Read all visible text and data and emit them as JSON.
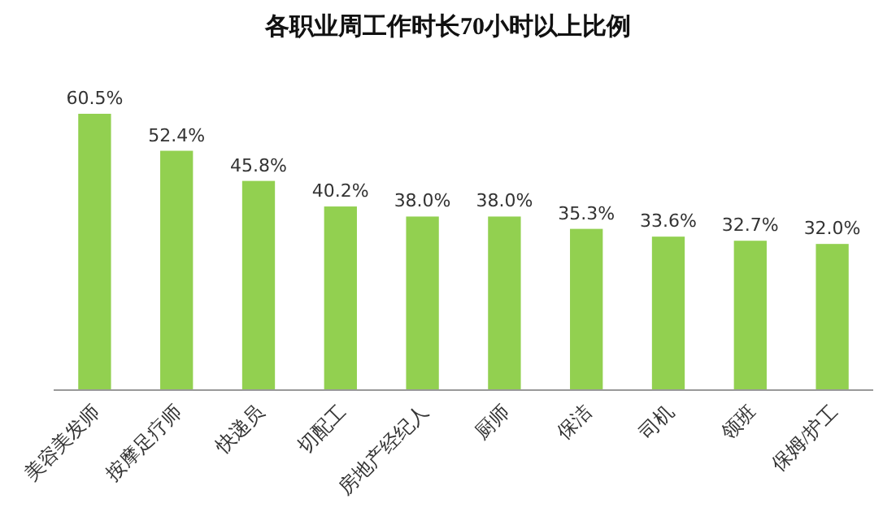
{
  "chart_data": {
    "type": "bar",
    "title": "各职业周工作时长70小时以上比例",
    "categories": [
      "美容美发师",
      "按摩足疗师",
      "快递员",
      "切配工",
      "房地产经纪人",
      "厨师",
      "保洁",
      "司机",
      "领班",
      "保姆/护工"
    ],
    "values": [
      60.5,
      52.4,
      45.8,
      40.2,
      38.0,
      38.0,
      35.3,
      33.6,
      32.7,
      32.0
    ],
    "value_labels": [
      "60.5%",
      "52.4%",
      "45.8%",
      "40.2%",
      "38.0%",
      "38.0%",
      "35.3%",
      "33.6%",
      "32.7%",
      "32.0%"
    ],
    "color": "#92d050"
  }
}
